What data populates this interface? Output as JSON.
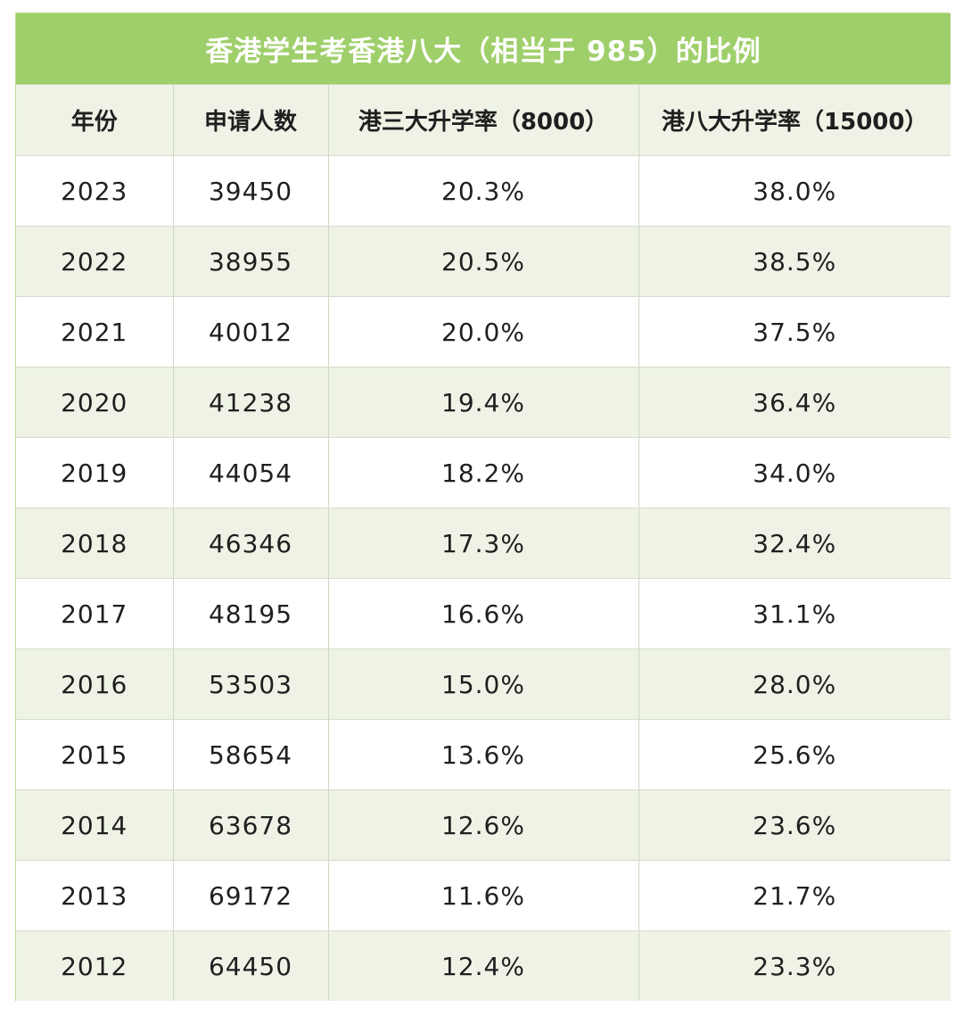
{
  "chart_data": {
    "type": "table",
    "title": "香港学生考香港八大（相当于 985）的比例",
    "columns": [
      "年份",
      "申请人数",
      "港三大升学率（8000）",
      "港八大升学率（15000）"
    ],
    "rows": [
      [
        "2023",
        "39450",
        "20.3%",
        "38.0%"
      ],
      [
        "2022",
        "38955",
        "20.5%",
        "38.5%"
      ],
      [
        "2021",
        "40012",
        "20.0%",
        "37.5%"
      ],
      [
        "2020",
        "41238",
        "19.4%",
        "36.4%"
      ],
      [
        "2019",
        "44054",
        "18.2%",
        "34.0%"
      ],
      [
        "2018",
        "46346",
        "17.3%",
        "32.4%"
      ],
      [
        "2017",
        "48195",
        "16.6%",
        "31.1%"
      ],
      [
        "2016",
        "53503",
        "15.0%",
        "28.0%"
      ],
      [
        "2015",
        "58654",
        "13.6%",
        "25.6%"
      ],
      [
        "2014",
        "63678",
        "12.6%",
        "23.6%"
      ],
      [
        "2013",
        "69172",
        "11.6%",
        "21.7%"
      ],
      [
        "2012",
        "64450",
        "12.4%",
        "23.3%"
      ]
    ]
  },
  "colors": {
    "title_bg": "#9fcf6a",
    "title_text": "#ffffff",
    "stripe_bg": "#eef3e6",
    "text": "#1f1f1f"
  }
}
